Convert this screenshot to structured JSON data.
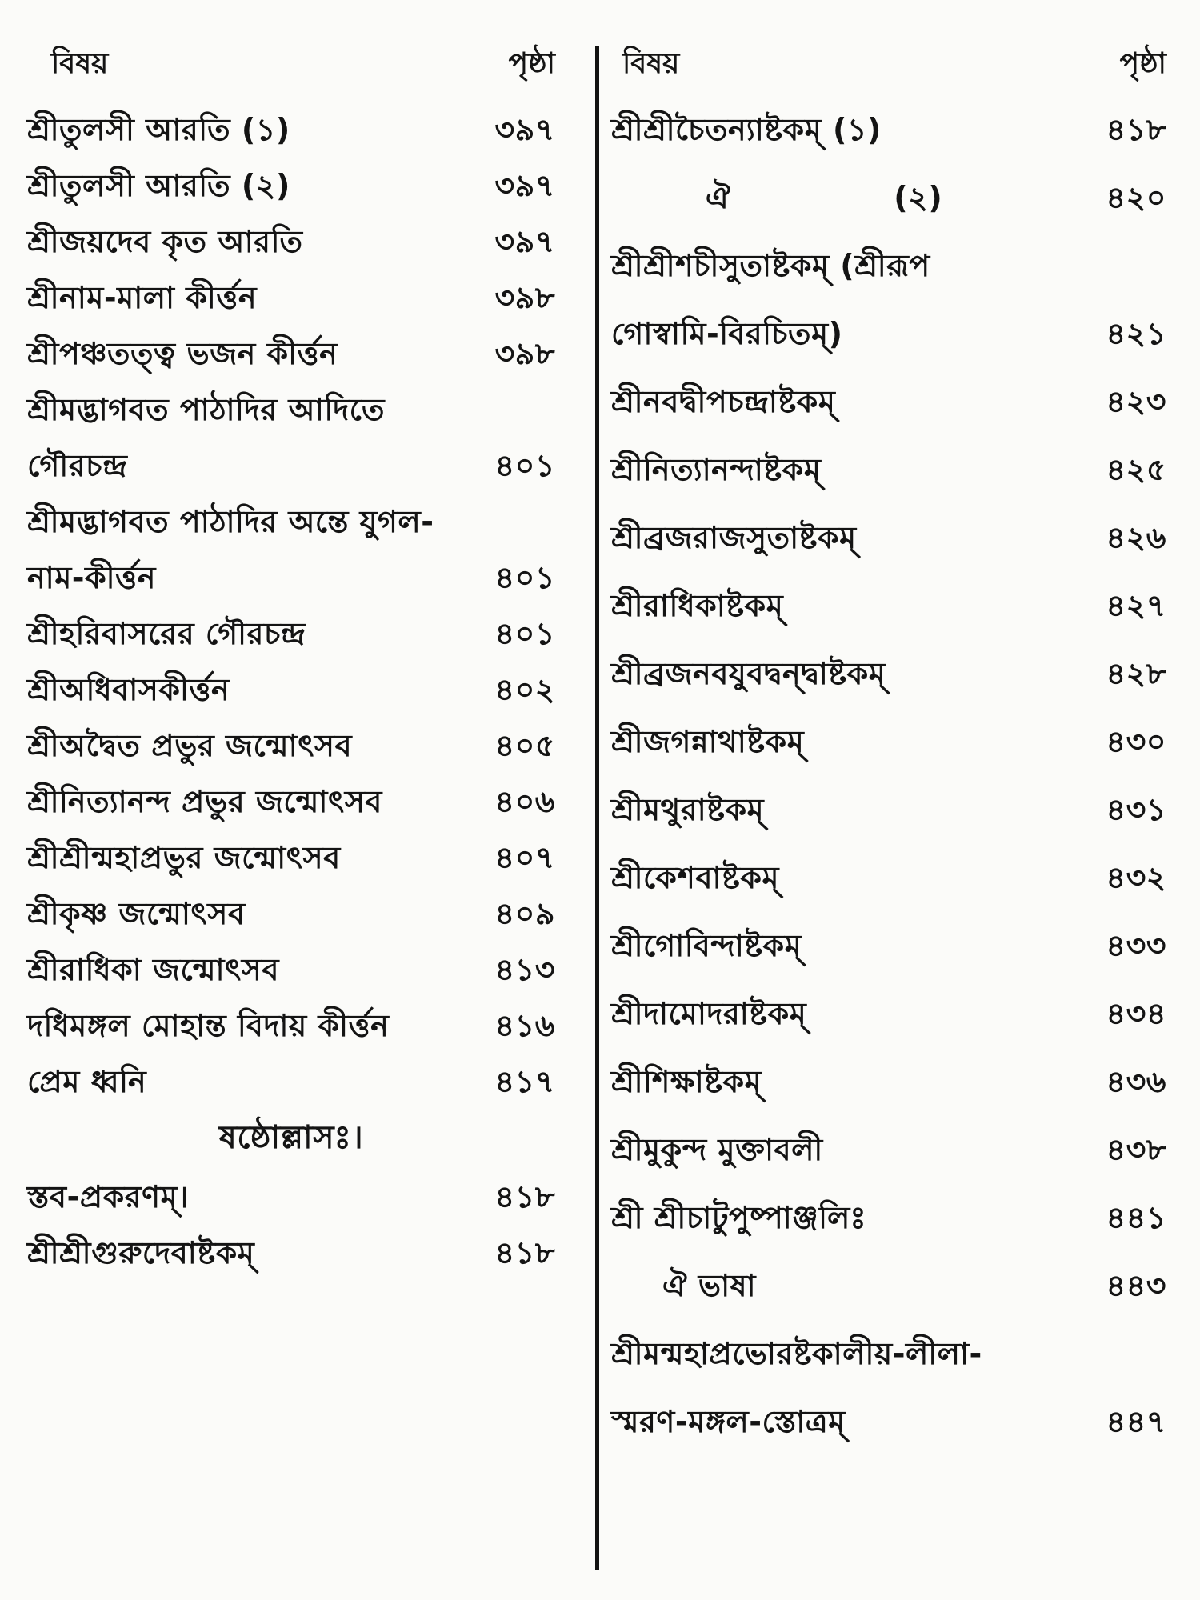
{
  "document_type": "book-table-of-contents",
  "language": "Bengali",
  "colors": {
    "paper": "#fbfbf9",
    "ink": "#141414",
    "divider": "#121212"
  },
  "columns": {
    "left": {
      "header": {
        "subject": "বিষয়",
        "page": "পৃষ্ঠা"
      },
      "rows": [
        {
          "text": "শ্রীতুলসী আরতি (১)",
          "page": "৩৯৭"
        },
        {
          "text": "শ্রীতুলসী আরতি (২)",
          "page": "৩৯৭"
        },
        {
          "text": "শ্রীজয়দেব কৃত আরতি",
          "page": "৩৯৭"
        },
        {
          "text": "শ্রীনাম-মালা কীর্ত্তন",
          "page": "৩৯৮"
        },
        {
          "text": "শ্রীপঞ্চতত্ত্ব ভজন কীর্ত্তন",
          "page": "৩৯৮"
        },
        {
          "text": "শ্রীমদ্ভাগবত পাঠাদির আদিতে",
          "page": ""
        },
        {
          "text": "গৌরচন্দ্র",
          "page": "৪০১"
        },
        {
          "text": "শ্রীমদ্ভাগবত পাঠাদির অন্তে যুগল-",
          "page": ""
        },
        {
          "text": "নাম-কীর্ত্তন",
          "page": "৪০১"
        },
        {
          "text": "শ্রীহরিবাসরের গৌরচন্দ্র",
          "page": "৪০১"
        },
        {
          "text": "শ্রীঅধিবাসকীর্ত্তন",
          "page": "৪০২"
        },
        {
          "text": "শ্রীঅদ্বৈত প্রভুর জন্মোৎসব",
          "page": "৪০৫"
        },
        {
          "text": "শ্রীনিত্যানন্দ প্রভুর জন্মোৎসব",
          "page": "৪০৬"
        },
        {
          "text": "শ্রীশ্রীন্মহাপ্রভুর জন্মোৎসব",
          "page": "৪০৭"
        },
        {
          "text": "শ্রীকৃষ্ণ জন্মোৎসব",
          "page": "৪০৯"
        },
        {
          "text": "শ্রীরাধিকা জন্মোৎসব",
          "page": "৪১৩"
        },
        {
          "text": "দধিমঙ্গল মোহান্ত বিদায় কীর্ত্তন",
          "page": "৪১৬"
        },
        {
          "text": "প্রেম ধ্বনি",
          "page": "৪১৭"
        },
        {
          "text": "ষষ্ঠোল্লাসঃ।",
          "section": true
        },
        {
          "text": "স্তব-প্রকরণম্।",
          "page": "৪১৮"
        },
        {
          "text": "শ্রীশ্রীগুরুদেবাষ্টকম্",
          "page": "৪১৮"
        }
      ]
    },
    "right": {
      "header": {
        "subject": "বিষয়",
        "page": "পৃষ্ঠা"
      },
      "rows": [
        {
          "text": "শ্রীশ্রীচৈতন্যাষ্টকম্ (১)",
          "page": "৪১৮"
        },
        {
          "text": "ঐ",
          "mid": "(২)",
          "page": "৪২০",
          "indent": true
        },
        {
          "text": "শ্রীশ্রীশচীসুতাষ্টকম্ (শ্রীরূপ",
          "page": ""
        },
        {
          "text": "গোস্বামি-বিরচিতম্)",
          "page": "৪২১"
        },
        {
          "text": "শ্রীনবদ্বীপচন্দ্রাষ্টকম্",
          "page": "৪২৩"
        },
        {
          "text": "শ্রীনিত্যানন্দাষ্টকম্",
          "page": "৪২৫"
        },
        {
          "text": "শ্রীব্রজরাজসুতাষ্টকম্",
          "page": "৪২৬"
        },
        {
          "text": "শ্রীরাধিকাষ্টকম্",
          "page": "৪২৭"
        },
        {
          "text": "শ্রীব্রজনবযুবদ্বন্দ্বাষ্টকম্",
          "page": "৪২৮"
        },
        {
          "text": "শ্রীজগন্নাথাষ্টকম্",
          "page": "৪৩০"
        },
        {
          "text": "শ্রীমথুরাষ্টকম্",
          "page": "৪৩১"
        },
        {
          "text": "শ্রীকেশবাষ্টকম্",
          "page": "৪৩২"
        },
        {
          "text": "শ্রীগোবিন্দাষ্টকম্",
          "page": "৪৩৩"
        },
        {
          "text": "শ্রীদামোদরাষ্টকম্",
          "page": "৪৩৪"
        },
        {
          "text": "শ্রীশিক্ষাষ্টকম্",
          "page": "৪৩৬"
        },
        {
          "text": "শ্রীমুকুন্দ মুক্তাবলী",
          "page": "৪৩৮"
        },
        {
          "text": "শ্রী শ্রীচাটুপুষ্পাঞ্জলিঃ",
          "page": "৪৪১"
        },
        {
          "text": "ঐ ভাষা",
          "page": "৪৪৩",
          "indent2": true
        },
        {
          "text": "শ্রীমন্মহাপ্রভোরষ্টকালীয়-লীলা-",
          "page": ""
        },
        {
          "text": "স্মরণ-মঙ্গল-স্তোত্রম্",
          "page": "৪৪৭"
        }
      ]
    }
  }
}
